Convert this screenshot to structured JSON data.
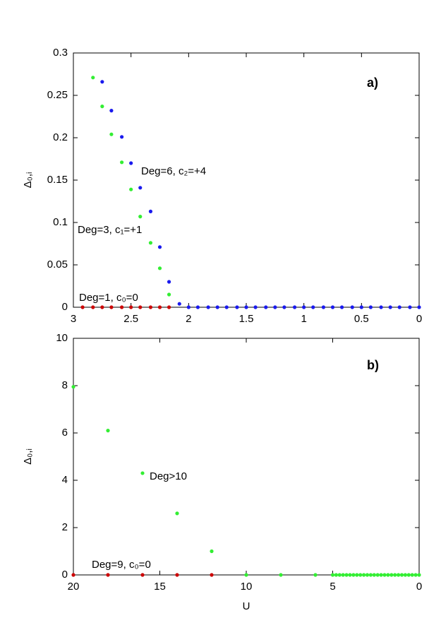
{
  "chart_data": [
    {
      "type": "scatter",
      "panel_label": "a)",
      "ylabel": "Δ₀,ᵢ",
      "xlim": [
        3,
        0
      ],
      "xticks": [
        3,
        2.5,
        2,
        1.5,
        1,
        0.5,
        0
      ],
      "ylim": [
        0,
        0.3
      ],
      "yticks": [
        0,
        0.05,
        0.1,
        0.15,
        0.2,
        0.25,
        0.3
      ],
      "annotations": [
        "Deg=6, c₂=+4",
        "Deg=3, c₁=+1",
        "Deg=1, c₀=0"
      ],
      "series": [
        {
          "color": "#cc0000",
          "x": [
            2.92,
            2.83,
            2.75,
            2.67,
            2.58,
            2.5,
            2.42,
            2.33,
            2.25,
            2.17
          ],
          "values": [
            0,
            0,
            0,
            0,
            0,
            0,
            0,
            0,
            0,
            0
          ]
        },
        {
          "color": "#33ee33",
          "x": [
            2.83,
            2.75,
            2.67,
            2.58,
            2.5,
            2.42,
            2.33,
            2.25,
            2.17
          ],
          "values": [
            0.271,
            0.237,
            0.204,
            0.171,
            0.139,
            0.107,
            0.076,
            0.046,
            0.015
          ]
        },
        {
          "color": "#1a1aee",
          "x": [
            2.75,
            2.67,
            2.58,
            2.5,
            2.42,
            2.33,
            2.25,
            2.17,
            2.08,
            2,
            1.92,
            1.83,
            1.75,
            1.67,
            1.58,
            1.5,
            1.42,
            1.33,
            1.25,
            1.17,
            1.08,
            1,
            0.92,
            0.83,
            0.75,
            0.67,
            0.58,
            0.5,
            0.42,
            0.33,
            0.25,
            0.17,
            0.08,
            0
          ],
          "values": [
            0.266,
            0.232,
            0.201,
            0.17,
            0.141,
            0.113,
            0.071,
            0.03,
            0.004,
            0,
            0,
            0,
            0,
            0,
            0,
            0,
            0,
            0,
            0,
            0,
            0,
            0,
            0,
            0,
            0,
            0,
            0,
            0,
            0,
            0,
            0,
            0,
            0,
            0
          ]
        }
      ]
    },
    {
      "type": "scatter",
      "panel_label": "b)",
      "ylabel": "Δ₀,ᵢ",
      "xlabel": "U",
      "xlim": [
        20,
        0
      ],
      "xticks": [
        20,
        15,
        10,
        5,
        0
      ],
      "ylim": [
        0,
        10
      ],
      "yticks": [
        0,
        2,
        4,
        6,
        8,
        10
      ],
      "annotations": [
        "Deg>10",
        "Deg=9, c₀=0"
      ],
      "series": [
        {
          "color": "#cc0000",
          "x": [
            20,
            18,
            16,
            14,
            12
          ],
          "values": [
            0,
            0,
            0,
            0,
            0
          ]
        },
        {
          "color": "#33ee33",
          "x": [
            20,
            18,
            16,
            14,
            12,
            10,
            8,
            6,
            5,
            4.8,
            4.6,
            4.4,
            4.2,
            4,
            3.8,
            3.6,
            3.4,
            3.2,
            3,
            2.8,
            2.6,
            2.4,
            2.2,
            2,
            1.8,
            1.6,
            1.4,
            1.2,
            1,
            0.8,
            0.6,
            0.4,
            0.2,
            0
          ],
          "values": [
            7.95,
            6.1,
            4.3,
            2.6,
            1.0,
            0,
            0,
            0,
            0,
            0,
            0,
            0,
            0,
            0,
            0,
            0,
            0,
            0,
            0,
            0,
            0,
            0,
            0,
            0,
            0,
            0,
            0,
            0,
            0,
            0,
            0,
            0,
            0,
            0
          ]
        }
      ]
    }
  ]
}
